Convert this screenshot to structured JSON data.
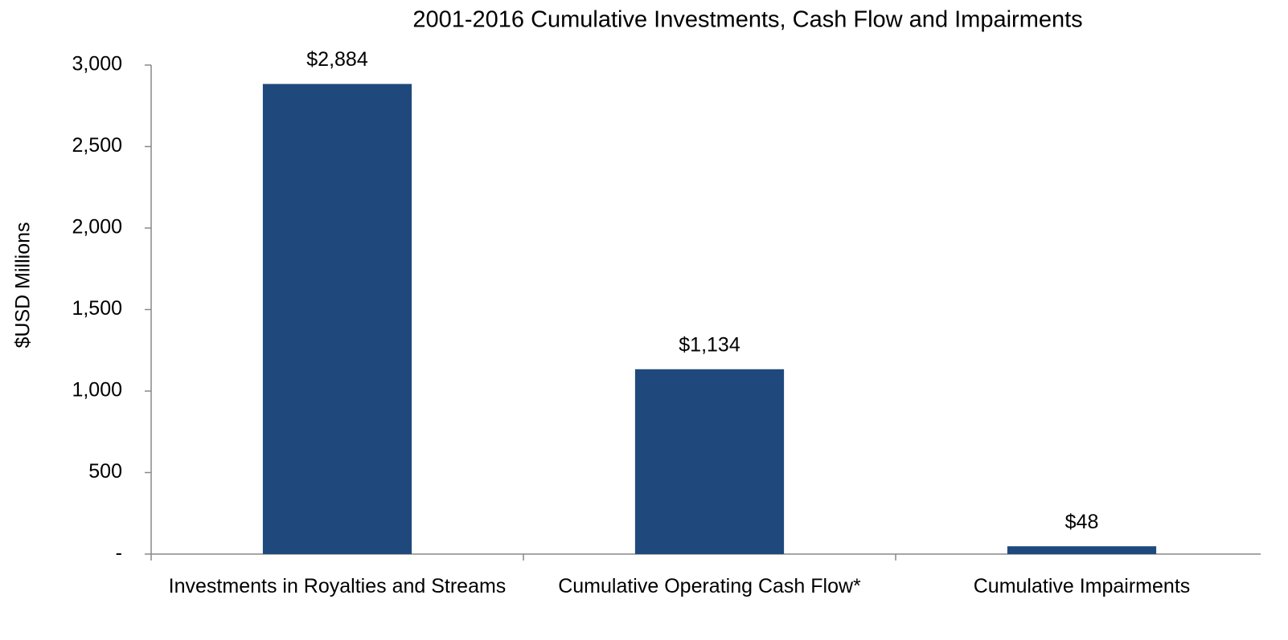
{
  "chart_data": {
    "type": "bar",
    "title": "2001-2016 Cumulative Investments, Cash Flow and Impairments",
    "y_label": "$USD Millions",
    "categories": [
      "Investments in Royalties and Streams",
      "Cumulative Operating Cash Flow*",
      "Cumulative Impairments"
    ],
    "values": [
      2884,
      1134,
      48
    ],
    "value_labels": [
      "$2,884",
      "$1,134",
      "$48"
    ],
    "color": "#1f497d",
    "ylim": [
      0,
      3000
    ],
    "yticks": [
      {
        "value": 0,
        "label": "-"
      },
      500,
      {
        "value": 1000,
        "label": "1,000"
      },
      {
        "value": 1500,
        "label": "1,500"
      },
      {
        "value": 2000,
        "label": "2,000"
      },
      {
        "value": 2500,
        "label": "2,500"
      },
      {
        "value": 3000,
        "label": "3,000"
      }
    ],
    "grid": false
  }
}
